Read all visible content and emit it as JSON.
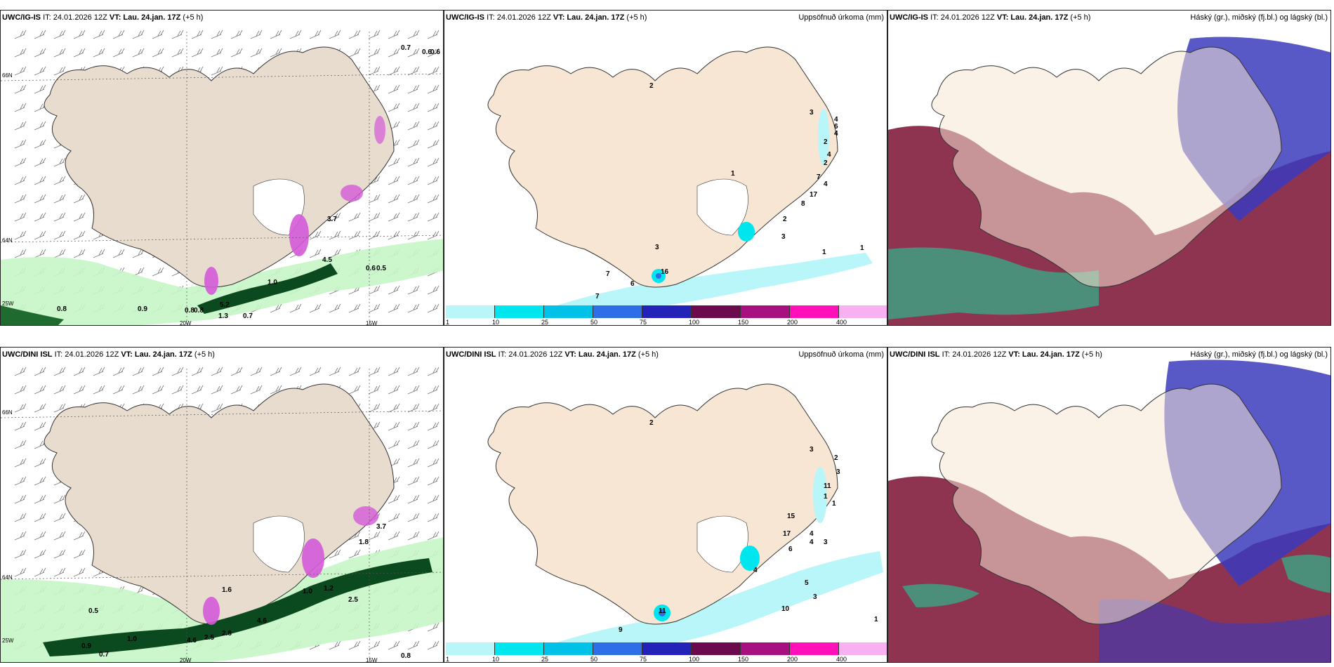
{
  "rows": [
    {
      "model": "UWC/IG-IS",
      "panels": [
        {
          "id": "wind",
          "model": "UWC/IG-IS",
          "right_title": "",
          "labels": [
            "0.7",
            "0.6",
            "0.6",
            "0.8",
            "0.9",
            "0.8",
            "0.8",
            "5.2",
            "1.3",
            "0.7",
            "0.6",
            "0.5",
            "1.0",
            "3.7",
            "4.5"
          ]
        },
        {
          "id": "precip",
          "model": "UWC/IG-IS",
          "right_title": "Uppsöfnuð úrkoma (mm)",
          "labels": [
            "2",
            "3",
            "4",
            "6",
            "4",
            "2",
            "4",
            "2",
            "7",
            "4",
            "1",
            "17",
            "8",
            "2",
            "3",
            "1",
            "1",
            "3",
            "7",
            "6",
            "7",
            "16"
          ]
        },
        {
          "id": "clouds",
          "model": "UWC/IG-IS",
          "right_title": "Háský (gr.), miðský (fj.bl.) og lágský (bl.)",
          "labels": []
        }
      ]
    },
    {
      "model": "UWC/DINI ISL",
      "panels": [
        {
          "id": "wind",
          "model": "UWC/DINI ISL",
          "right_title": "",
          "labels": [
            "1.6",
            "0.5",
            "0.9",
            "0.7",
            "1.0",
            "4.6",
            "2.5",
            "2.8",
            "4.6",
            "1.0",
            "1.2",
            "2.5",
            "1.8",
            "3.7",
            "0.8"
          ]
        },
        {
          "id": "precip",
          "model": "UWC/DINI ISL",
          "right_title": "Uppsöfnuð úrkoma (mm)",
          "labels": [
            "2",
            "3",
            "2",
            "3",
            "11",
            "1",
            "1",
            "15",
            "17",
            "4",
            "3",
            "4",
            "6",
            "4",
            "5",
            "10",
            "3",
            "1",
            "9",
            "11"
          ]
        },
        {
          "id": "clouds",
          "model": "UWC/DINI ISL",
          "right_title": "Háský (gr.), miðský (fj.bl.) og lágský (bl.)",
          "labels": []
        }
      ]
    }
  ],
  "header": {
    "it_label": "IT: 24.01.2026 12Z",
    "vt_prefix": "VT:",
    "vt_value": "Lau. 24.jan. 17Z",
    "offset": "(+5 h)"
  },
  "axes": {
    "lat_66": "66N",
    "lat_64": "64N",
    "lon_25": "25W",
    "lon_20": "20W",
    "lon_15": "15W"
  },
  "colorbar": {
    "ticks": [
      "1",
      "10",
      "25",
      "50",
      "75",
      "100",
      "150",
      "200",
      "400"
    ],
    "colors": [
      "#b9f6f9",
      "#00e6ee",
      "#00c2e8",
      "#2f6fe6",
      "#2323b8",
      "#6b0a4d",
      "#a6117f",
      "#ff10b8",
      "#f7b0f0"
    ]
  },
  "colors": {
    "land": "#f6e6d3",
    "land_wind": "#e8dccf",
    "sea": "#ffffff",
    "precip_light": "#c7f5c5",
    "precip_mid": "#4fbf62",
    "precip_dark": "#0b4a1e",
    "snow_magenta": "#d45ad8",
    "cloud_high": "#7a1033",
    "cloud_mid": "#3b3bbd",
    "cloud_low": "#2fb58a"
  }
}
